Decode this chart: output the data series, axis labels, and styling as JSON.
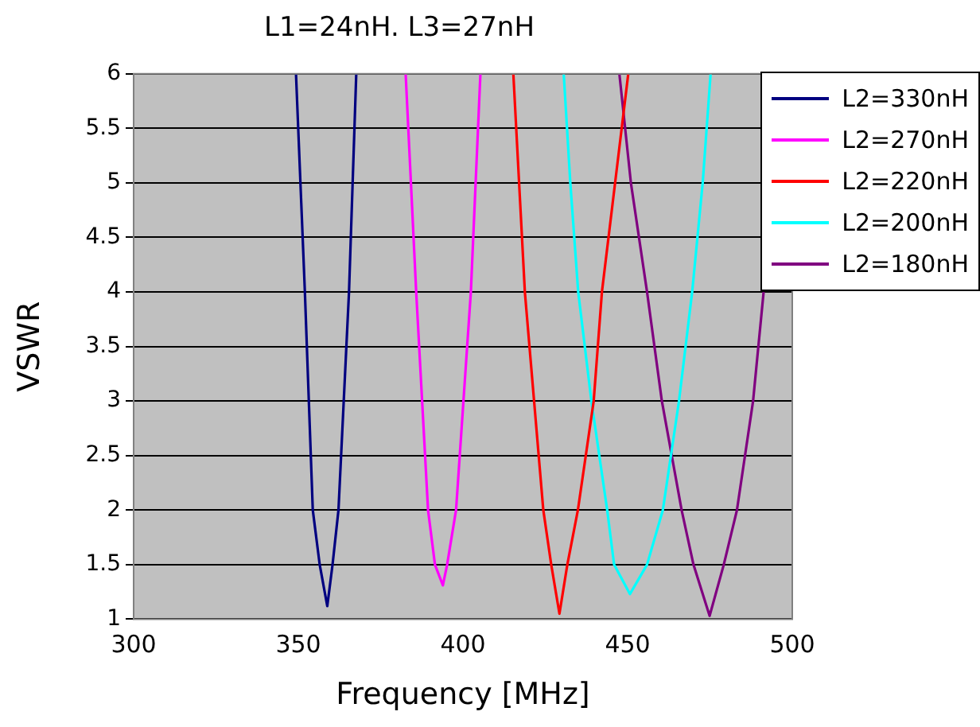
{
  "chart_data": {
    "type": "line",
    "title": "L1=24nH. L3=27nH",
    "xlabel": "Frequency [MHz]",
    "ylabel": "VSWR",
    "xlim": [
      300,
      500
    ],
    "xticks": [
      300,
      350,
      400,
      450,
      500
    ],
    "ylim": [
      1,
      6
    ],
    "yticks": [
      1,
      1.5,
      2,
      2.5,
      3,
      3.5,
      4,
      4.5,
      5,
      5.5,
      6
    ],
    "grid": "y",
    "legend": "top right",
    "marker": "none",
    "line_style": "solid",
    "series": [
      {
        "name": "L2=330nH",
        "color": "#000080",
        "x": [
          349.3,
          352.0,
          354.4,
          356.5,
          358.8,
          360.4,
          362.2,
          365.4,
          367.6
        ],
        "values": [
          6,
          4,
          2,
          1.5,
          1.12,
          1.5,
          2,
          4,
          6
        ]
      },
      {
        "name": "L2=270nH",
        "color": "#ff00ff",
        "x": [
          382.6,
          385.8,
          389.4,
          391.5,
          393.9,
          395.2,
          397.9,
          402.4,
          405.3
        ],
        "values": [
          6,
          4,
          2,
          1.5,
          1.31,
          1.5,
          2,
          4,
          6
        ]
      },
      {
        "name": "L2=220nH",
        "color": "#ff0000",
        "x": [
          415.3,
          418.8,
          424.4,
          426.8,
          429.3,
          431.7,
          434.9,
          439.7,
          442.2,
          446.2,
          450.2
        ],
        "values": [
          6,
          4,
          2,
          1.5,
          1.05,
          1.5,
          2,
          3,
          4,
          5,
          6
        ]
      },
      {
        "name": "L2=200nH",
        "color": "#00ffff",
        "x": [
          430.6,
          432.6,
          435.0,
          439.0,
          443.8,
          445.9,
          450.7,
          455.9,
          460.7,
          465.6,
          469.6,
          472.8,
          475.2
        ],
        "values": [
          6,
          5,
          4,
          3,
          2,
          1.5,
          1.23,
          1.5,
          2,
          3,
          4,
          5,
          6
        ]
      },
      {
        "name": "L2=180nH",
        "color": "#800080",
        "x": [
          447.5,
          451.0,
          455.9,
          460.4,
          466.4,
          470.0,
          474.9,
          479.2,
          483.2,
          488.1,
          491.3
        ],
        "values": [
          6,
          5,
          4,
          3,
          2,
          1.5,
          1.03,
          1.5,
          2,
          3,
          4
        ]
      }
    ]
  }
}
